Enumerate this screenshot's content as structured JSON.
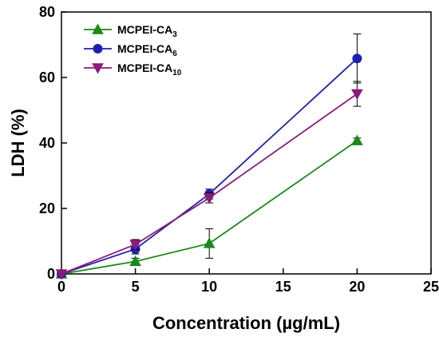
{
  "chart_data": {
    "type": "line",
    "title": "",
    "xlabel": "Concentration (µg/mL)",
    "ylabel": "LDH (%)",
    "xlim": [
      0,
      25
    ],
    "ylim": [
      0,
      80
    ],
    "xticks": [
      "0",
      "5",
      "10",
      "15",
      "20",
      "25"
    ],
    "yticks": [
      "0",
      "20",
      "40",
      "60",
      "80"
    ],
    "grid": false,
    "legend_position": "top-left",
    "x": [
      0,
      5,
      10,
      20
    ],
    "series": [
      {
        "name": "MCPEI-CA",
        "name_sub": "3",
        "color": "#1a8a1a",
        "marker": "triangle-up",
        "values": [
          0,
          3.8,
          9.3,
          40.7
        ],
        "errors": [
          0,
          1.0,
          4.5,
          0.8
        ]
      },
      {
        "name": "MCPEI-CA",
        "name_sub": "6",
        "color": "#1f1fb0",
        "marker": "circle",
        "values": [
          0,
          7.6,
          24.4,
          65.8
        ],
        "errors": [
          0,
          1.5,
          1.5,
          7.5
        ]
      },
      {
        "name": "MCPEI-CA",
        "name_sub": "10",
        "color": "#8b1a7a",
        "marker": "triangle-down",
        "values": [
          0,
          9.0,
          23.2,
          55.0
        ],
        "errors": [
          0,
          1.5,
          1.5,
          3.8
        ]
      }
    ]
  }
}
